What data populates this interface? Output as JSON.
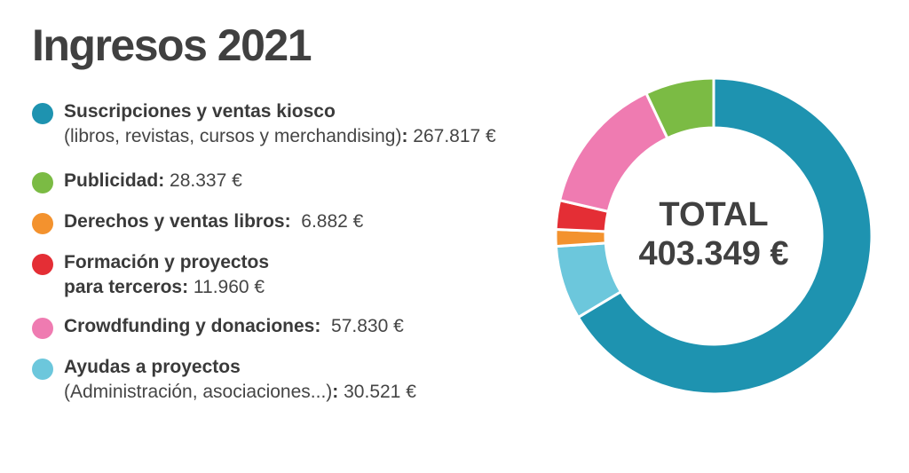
{
  "title": "Ingresos 2021",
  "chart_data": {
    "type": "pie",
    "variant": "donut",
    "center_label": "TOTAL",
    "center_value": "403.349 €",
    "total": 403349,
    "start": "top, clockwise",
    "slices": [
      {
        "name": "Suscripciones y ventas kiosco",
        "detail": "(libros, revistas, cursos y merchandising)",
        "value": 267817,
        "value_label": "267.817 €",
        "color": "#1e93b0"
      },
      {
        "name": "Ayudas a proyectos",
        "detail": "(Administración, asociaciones...)",
        "value": 30521,
        "value_label": "30.521 €",
        "color": "#6cc7dc"
      },
      {
        "name": "Derechos y ventas libros",
        "detail": "",
        "value": 6882,
        "value_label": "6.882 €",
        "color": "#f3922e"
      },
      {
        "name": "Formación y proyectos para terceros",
        "detail": "",
        "value": 11960,
        "value_label": "11.960 €",
        "color": "#e42e35"
      },
      {
        "name": "Crowdfunding y donaciones",
        "detail": "",
        "value": 57830,
        "value_label": "57.830 €",
        "color": "#ef7bb1"
      },
      {
        "name": "Publicidad",
        "detail": "",
        "value": 28337,
        "value_label": "28.337 €",
        "color": "#7bbb44"
      }
    ]
  },
  "legend": [
    {
      "lines": [
        {
          "label": "Suscripciones y ventas kiosco",
          "tail": ""
        },
        {
          "label": "",
          "tail": "(libros, revistas, cursos y merchandising)",
          "value": "267.817 €"
        }
      ],
      "color": "#1e93b0"
    },
    {
      "lines": [
        {
          "label": "Publicidad",
          "value": "28.337 €"
        }
      ],
      "color": "#7bbb44"
    },
    {
      "lines": [
        {
          "label": "Derechos y ventas libros",
          "value": "6.882 €"
        }
      ],
      "color": "#f3922e"
    },
    {
      "lines": [
        {
          "label": "Formación y proyectos",
          "tail": ""
        },
        {
          "label": "para terceros",
          "value": "11.960 €"
        }
      ],
      "color": "#e42e35"
    },
    {
      "lines": [
        {
          "label": "Crowdfunding y donaciones",
          "value": "57.830 €"
        }
      ],
      "color": "#ef7bb1"
    },
    {
      "lines": [
        {
          "label": "Ayudas a proyectos",
          "tail": ""
        },
        {
          "label": "",
          "tail": "(Administración, asociaciones...)",
          "value": "30.521 €"
        }
      ],
      "color": "#6cc7dc"
    }
  ]
}
